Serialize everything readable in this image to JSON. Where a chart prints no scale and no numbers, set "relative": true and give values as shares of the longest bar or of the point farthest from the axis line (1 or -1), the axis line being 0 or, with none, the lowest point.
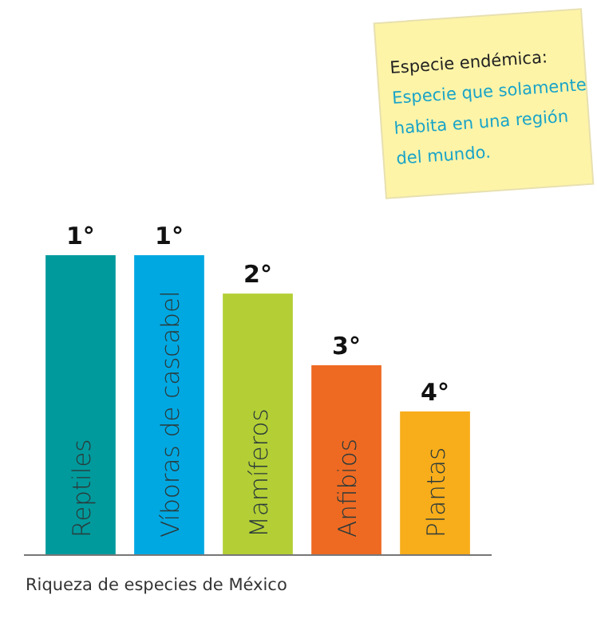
{
  "chart_data": {
    "type": "bar",
    "relative": true,
    "xlabel": "Riqueza de especies de México",
    "categories": [
      "Reptiles",
      "Víboras de cascabel",
      "Mamíferos",
      "Anfibios",
      "Plantas"
    ],
    "values": [
      1,
      1,
      0.872,
      0.633,
      0.479
    ],
    "colors": [
      "#009a9c",
      "#00a8e2",
      "#b3cf35",
      "#ee6a22",
      "#f8ad1b"
    ],
    "annotations": [
      "Especie endémica:",
      "Especie que solamente habita en una región del mundo.",
      {
        "text": "1°",
        "x": "Reptiles",
        "y": 1
      },
      {
        "text": "1°",
        "x": "Víboras de cascabel",
        "y": 1
      },
      {
        "text": "2°",
        "x": "Mamíferos",
        "y": 0.872
      },
      {
        "text": "3°",
        "x": "Anfibios",
        "y": 0.633
      },
      {
        "text": "4°",
        "x": "Plantas",
        "y": 0.479
      }
    ]
  }
}
